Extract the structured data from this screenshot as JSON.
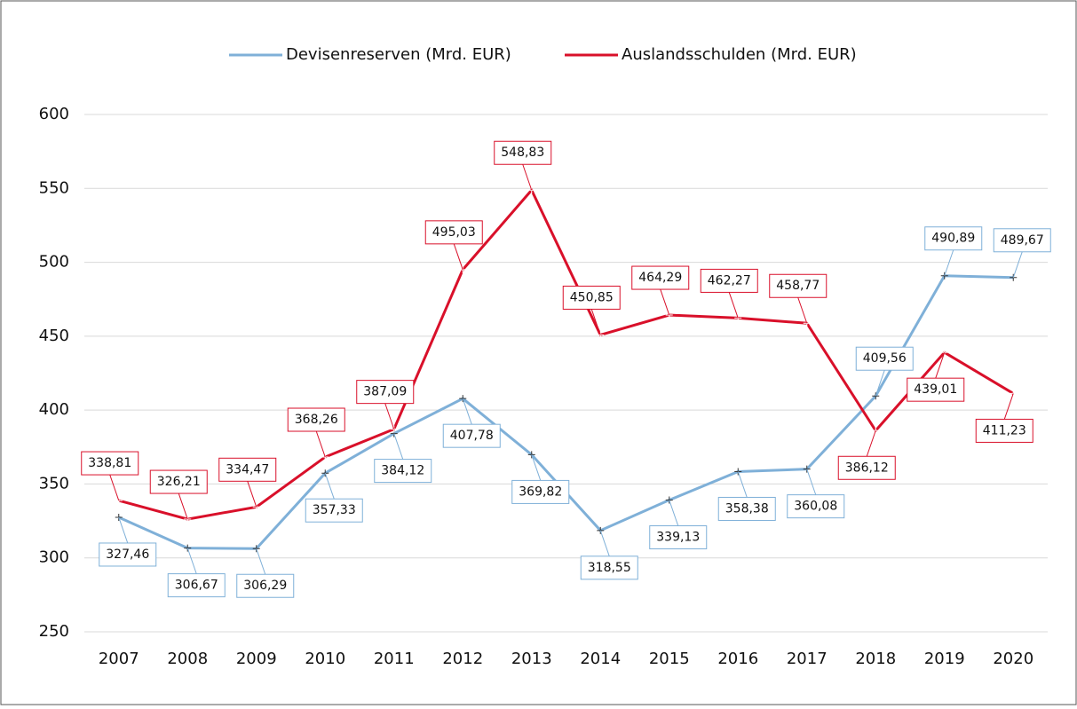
{
  "chart_data": {
    "type": "line",
    "categories": [
      "2007",
      "2008",
      "2009",
      "2010",
      "2011",
      "2012",
      "2013",
      "2014",
      "2015",
      "2016",
      "2017",
      "2018",
      "2019",
      "2020"
    ],
    "series": [
      {
        "name": "Devisenreserven (Mrd. EUR)",
        "color": "#7fb0d8",
        "values": [
          327.46,
          306.67,
          306.29,
          357.33,
          384.12,
          407.78,
          369.82,
          318.55,
          339.13,
          358.38,
          360.08,
          409.56,
          490.89,
          489.67
        ],
        "value_labels": [
          "327,46",
          "306,67",
          "306,29",
          "357,33",
          "384,12",
          "407,78",
          "369,82",
          "318,55",
          "339,13",
          "358,38",
          "360,08",
          "409,56",
          "490,89",
          "489,67"
        ]
      },
      {
        "name": "Auslandsschulden (Mrd. EUR)",
        "color": "#d9102a",
        "values": [
          338.81,
          326.21,
          334.47,
          368.26,
          387.09,
          495.03,
          548.83,
          450.85,
          464.29,
          462.27,
          458.77,
          386.12,
          439.01,
          411.23
        ],
        "value_labels": [
          "338,81",
          "326,21",
          "334,47",
          "368,26",
          "387,09",
          "495,03",
          "548,83",
          "450,85",
          "464,29",
          "462,27",
          "458,77",
          "386,12",
          "439,01",
          "411,23"
        ]
      }
    ],
    "ylim": [
      250,
      600
    ],
    "yticks": [
      250,
      300,
      350,
      400,
      450,
      500,
      550,
      600
    ],
    "grid": true,
    "legend": "top"
  }
}
